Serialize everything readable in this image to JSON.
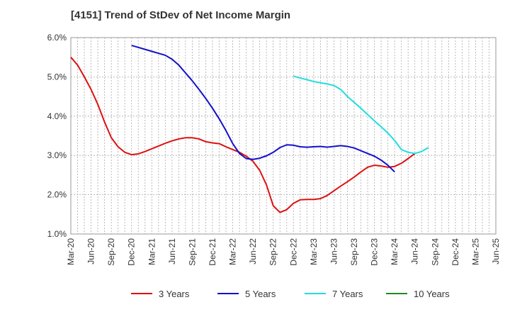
{
  "chart_data": {
    "type": "line",
    "title": "[4151]  Trend of StDev of Net Income Margin",
    "xlabel": "",
    "ylabel": "",
    "ylim": [
      1.0,
      6.0
    ],
    "yticks": [
      "6.0%",
      "5.0%",
      "4.0%",
      "3.0%",
      "2.0%",
      "1.0%"
    ],
    "x_categories": [
      "Mar-20",
      "Jun-20",
      "Sep-20",
      "Dec-20",
      "Mar-21",
      "Jun-21",
      "Sep-21",
      "Dec-21",
      "Mar-22",
      "Jun-22",
      "Sep-22",
      "Dec-22",
      "Mar-23",
      "Jun-23",
      "Sep-23",
      "Dec-23",
      "Mar-24",
      "Jun-24",
      "Sep-24",
      "Dec-24",
      "Mar-25",
      "Jun-25"
    ],
    "grid": true,
    "legend_position": "bottom",
    "series": [
      {
        "name": "3 Years",
        "color": "#dd1111",
        "x_start": "Mar-20",
        "values": [
          5.5,
          5.3,
          5.0,
          4.68,
          4.3,
          3.85,
          3.45,
          3.22,
          3.08,
          3.02,
          3.04,
          3.1,
          3.17,
          3.24,
          3.31,
          3.37,
          3.42,
          3.45,
          3.45,
          3.42,
          3.35,
          3.32,
          3.3,
          3.22,
          3.15,
          3.08,
          2.98,
          2.85,
          2.62,
          2.25,
          1.72,
          1.55,
          1.62,
          1.78,
          1.87,
          1.88,
          1.88,
          1.9,
          1.98,
          2.1,
          2.22,
          2.33,
          2.45,
          2.58,
          2.7,
          2.75,
          2.73,
          2.7,
          2.72,
          2.8,
          2.92,
          3.05
        ]
      },
      {
        "name": "5 Years",
        "color": "#1111cc",
        "x_start": "Dec-20",
        "values": [
          5.8,
          5.75,
          5.7,
          5.65,
          5.6,
          5.55,
          5.45,
          5.3,
          5.1,
          4.9,
          4.68,
          4.45,
          4.2,
          3.93,
          3.63,
          3.3,
          3.05,
          2.92,
          2.9,
          2.93,
          2.99,
          3.08,
          3.2,
          3.27,
          3.26,
          3.22,
          3.21,
          3.22,
          3.23,
          3.21,
          3.23,
          3.25,
          3.23,
          3.19,
          3.12,
          3.05,
          2.98,
          2.88,
          2.75,
          2.58
        ]
      },
      {
        "name": "7 Years",
        "color": "#22dddd",
        "x_start": "Dec-22",
        "values": [
          5.02,
          4.97,
          4.93,
          4.88,
          4.85,
          4.82,
          4.78,
          4.68,
          4.5,
          4.35,
          4.2,
          4.04,
          3.88,
          3.73,
          3.57,
          3.38,
          3.15,
          3.08,
          3.05,
          3.1,
          3.2
        ]
      },
      {
        "name": "10 Years",
        "color": "#1e8c1e",
        "x_start": "",
        "values": []
      }
    ]
  }
}
